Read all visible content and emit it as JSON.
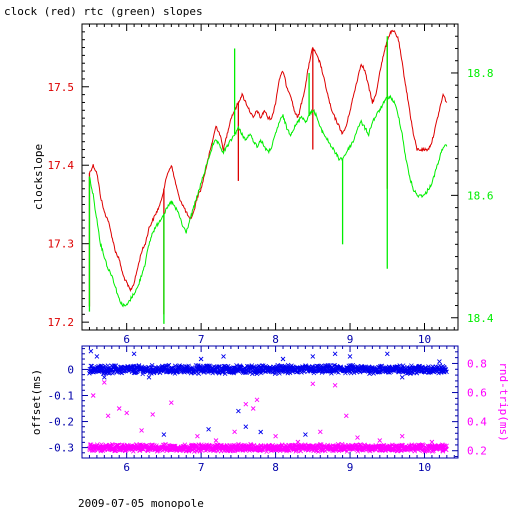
{
  "title": "clock (red) rtc (green) slopes",
  "footer": "2009-07-05 monopole",
  "colors": {
    "clock": "#dd0000",
    "rtc": "#00ee00",
    "offset": "#0000ee",
    "rnd_trip": "#ff00ff",
    "axis": "#000000"
  },
  "chart_data": [
    {
      "type": "line",
      "title": "clock (red) rtc (green) slopes",
      "ylabel": "clockslope",
      "xlim": [
        5.4,
        10.45
      ],
      "ylim_left": [
        17.19,
        17.58
      ],
      "ylim_right": [
        18.38,
        18.88
      ],
      "x_ticks": [
        6,
        7,
        8,
        9,
        10
      ],
      "left_ticks": [
        17.2,
        17.3,
        17.4,
        17.5
      ],
      "right_ticks": [
        18.4,
        18.6,
        18.8
      ],
      "series": [
        {
          "name": "clock",
          "axis": "left",
          "x": [
            5.5,
            5.55,
            5.6,
            5.65,
            5.7,
            5.75,
            5.8,
            5.85,
            5.9,
            5.95,
            6.0,
            6.05,
            6.1,
            6.15,
            6.2,
            6.25,
            6.3,
            6.35,
            6.4,
            6.45,
            6.5,
            6.55,
            6.6,
            6.65,
            6.7,
            6.75,
            6.8,
            6.85,
            6.9,
            6.95,
            7.0,
            7.05,
            7.1,
            7.15,
            7.2,
            7.25,
            7.3,
            7.35,
            7.4,
            7.45,
            7.5,
            7.55,
            7.6,
            7.65,
            7.7,
            7.75,
            7.8,
            7.85,
            7.9,
            7.95,
            8.0,
            8.05,
            8.1,
            8.15,
            8.2,
            8.25,
            8.3,
            8.35,
            8.4,
            8.45,
            8.5,
            8.55,
            8.6,
            8.65,
            8.7,
            8.75,
            8.8,
            8.85,
            8.9,
            8.95,
            9.0,
            9.05,
            9.1,
            9.15,
            9.2,
            9.25,
            9.3,
            9.35,
            9.4,
            9.45,
            9.5,
            9.55,
            9.6,
            9.65,
            9.7,
            9.75,
            9.8,
            9.85,
            9.9,
            9.95,
            10.0,
            10.05,
            10.1,
            10.15,
            10.2,
            10.25,
            10.3
          ],
          "y": [
            17.39,
            17.4,
            17.39,
            17.36,
            17.34,
            17.33,
            17.31,
            17.29,
            17.28,
            17.26,
            17.25,
            17.24,
            17.25,
            17.27,
            17.29,
            17.3,
            17.32,
            17.33,
            17.34,
            17.35,
            17.37,
            17.39,
            17.4,
            17.38,
            17.36,
            17.35,
            17.34,
            17.33,
            17.34,
            17.36,
            17.37,
            17.39,
            17.41,
            17.43,
            17.45,
            17.44,
            17.42,
            17.44,
            17.46,
            17.47,
            17.48,
            17.49,
            17.48,
            17.47,
            17.46,
            17.47,
            17.46,
            17.47,
            17.46,
            17.46,
            17.48,
            17.51,
            17.52,
            17.5,
            17.49,
            17.47,
            17.46,
            17.48,
            17.5,
            17.53,
            17.55,
            17.54,
            17.53,
            17.51,
            17.49,
            17.47,
            17.46,
            17.45,
            17.44,
            17.45,
            17.47,
            17.49,
            17.51,
            17.53,
            17.52,
            17.5,
            17.48,
            17.49,
            17.52,
            17.54,
            17.56,
            17.57,
            17.57,
            17.56,
            17.53,
            17.5,
            17.47,
            17.44,
            17.42,
            17.42,
            17.42,
            17.42,
            17.43,
            17.45,
            17.47,
            17.49,
            17.48
          ],
          "spikes": [
            {
              "x": 5.5,
              "y": 17.22
            },
            {
              "x": 6.5,
              "y": 17.21
            },
            {
              "x": 7.5,
              "y": 17.38
            },
            {
              "x": 8.5,
              "y": 17.42
            },
            {
              "x": 9.5,
              "y": 17.37
            }
          ]
        },
        {
          "name": "rtc",
          "axis": "right",
          "x": [
            5.5,
            5.55,
            5.6,
            5.65,
            5.7,
            5.75,
            5.8,
            5.85,
            5.9,
            5.95,
            6.0,
            6.05,
            6.1,
            6.15,
            6.2,
            6.25,
            6.3,
            6.35,
            6.4,
            6.45,
            6.5,
            6.55,
            6.6,
            6.65,
            6.7,
            6.75,
            6.8,
            6.85,
            6.9,
            6.95,
            7.0,
            7.05,
            7.1,
            7.15,
            7.2,
            7.25,
            7.3,
            7.35,
            7.4,
            7.45,
            7.5,
            7.55,
            7.6,
            7.65,
            7.7,
            7.75,
            7.8,
            7.85,
            7.9,
            7.95,
            8.0,
            8.05,
            8.1,
            8.15,
            8.2,
            8.25,
            8.3,
            8.35,
            8.4,
            8.45,
            8.5,
            8.55,
            8.6,
            8.65,
            8.7,
            8.75,
            8.8,
            8.85,
            8.9,
            8.95,
            9.0,
            9.05,
            9.1,
            9.15,
            9.2,
            9.25,
            9.3,
            9.35,
            9.4,
            9.45,
            9.5,
            9.55,
            9.6,
            9.65,
            9.7,
            9.75,
            9.8,
            9.85,
            9.9,
            9.95,
            10.0,
            10.05,
            10.1,
            10.15,
            10.2,
            10.25,
            10.3
          ],
          "y": [
            18.63,
            18.6,
            18.56,
            18.52,
            18.5,
            18.48,
            18.47,
            18.45,
            18.43,
            18.42,
            18.42,
            18.43,
            18.44,
            18.45,
            18.47,
            18.49,
            18.52,
            18.54,
            18.55,
            18.56,
            18.57,
            18.58,
            18.59,
            18.58,
            18.57,
            18.55,
            18.54,
            18.56,
            18.58,
            18.6,
            18.62,
            18.64,
            18.66,
            18.68,
            18.69,
            18.68,
            18.67,
            18.68,
            18.69,
            18.7,
            18.71,
            18.7,
            18.69,
            18.7,
            18.69,
            18.68,
            18.69,
            18.68,
            18.67,
            18.68,
            18.7,
            18.72,
            18.73,
            18.71,
            18.7,
            18.71,
            18.72,
            18.73,
            18.72,
            18.73,
            18.74,
            18.73,
            18.71,
            18.7,
            18.69,
            18.68,
            18.67,
            18.66,
            18.66,
            18.67,
            18.68,
            18.69,
            18.71,
            18.72,
            18.71,
            18.7,
            18.72,
            18.73,
            18.74,
            18.75,
            18.76,
            18.76,
            18.75,
            18.73,
            18.7,
            18.66,
            18.63,
            18.61,
            18.6,
            18.6,
            18.6,
            18.61,
            18.62,
            18.64,
            18.66,
            18.68,
            18.68
          ],
          "spikes": [
            {
              "x": 5.5,
              "y": 18.41
            },
            {
              "x": 6.5,
              "y": 18.39
            },
            {
              "x": 7.45,
              "y": 18.84
            },
            {
              "x": 8.45,
              "y": 18.8
            },
            {
              "x": 8.9,
              "y": 18.52
            },
            {
              "x": 9.5,
              "y": 18.86
            },
            {
              "x": 9.5,
              "y": 18.48
            }
          ]
        }
      ]
    },
    {
      "type": "scatter",
      "ylabel_left": "offset(ms)",
      "ylabel_right": "rnd-trip(ms)",
      "xlim": [
        5.4,
        10.45
      ],
      "ylim_left": [
        -0.34,
        0.09
      ],
      "ylim_right": [
        0.15,
        0.92
      ],
      "x_ticks": [
        6,
        7,
        8,
        9,
        10
      ],
      "left_ticks": [
        0,
        -0.1,
        -0.2,
        -0.3
      ],
      "right_ticks": [
        0.8,
        0.6,
        0.4,
        0.2
      ],
      "series": [
        {
          "name": "offset",
          "axis": "left",
          "base_value": 0.0,
          "spread": 0.012,
          "x_range": [
            5.5,
            10.3
          ],
          "outliers": [
            {
              "x": 5.52,
              "y": 0.07
            },
            {
              "x": 5.6,
              "y": 0.05
            },
            {
              "x": 5.7,
              "y": -0.03
            },
            {
              "x": 6.1,
              "y": 0.06
            },
            {
              "x": 6.3,
              "y": -0.03
            },
            {
              "x": 6.5,
              "y": -0.25
            },
            {
              "x": 7.0,
              "y": 0.04
            },
            {
              "x": 7.1,
              "y": -0.23
            },
            {
              "x": 7.3,
              "y": 0.05
            },
            {
              "x": 7.5,
              "y": -0.16
            },
            {
              "x": 7.6,
              "y": -0.22
            },
            {
              "x": 7.8,
              "y": -0.24
            },
            {
              "x": 8.1,
              "y": 0.04
            },
            {
              "x": 8.4,
              "y": -0.25
            },
            {
              "x": 8.5,
              "y": 0.05
            },
            {
              "x": 8.8,
              "y": 0.06
            },
            {
              "x": 9.0,
              "y": 0.05
            },
            {
              "x": 9.5,
              "y": 0.06
            },
            {
              "x": 9.7,
              "y": -0.03
            },
            {
              "x": 10.2,
              "y": 0.03
            }
          ]
        },
        {
          "name": "rnd-trip",
          "axis": "right",
          "base_value": 0.22,
          "spread": 0.018,
          "x_range": [
            5.5,
            10.3
          ],
          "outliers": [
            {
              "x": 5.55,
              "y": 0.58
            },
            {
              "x": 5.7,
              "y": 0.67
            },
            {
              "x": 5.75,
              "y": 0.44
            },
            {
              "x": 5.9,
              "y": 0.49
            },
            {
              "x": 6.0,
              "y": 0.46
            },
            {
              "x": 6.2,
              "y": 0.34
            },
            {
              "x": 6.35,
              "y": 0.45
            },
            {
              "x": 6.6,
              "y": 0.53
            },
            {
              "x": 6.95,
              "y": 0.3
            },
            {
              "x": 7.2,
              "y": 0.27
            },
            {
              "x": 7.45,
              "y": 0.33
            },
            {
              "x": 7.6,
              "y": 0.52
            },
            {
              "x": 7.7,
              "y": 0.49
            },
            {
              "x": 7.75,
              "y": 0.55
            },
            {
              "x": 8.0,
              "y": 0.3
            },
            {
              "x": 8.3,
              "y": 0.26
            },
            {
              "x": 8.5,
              "y": 0.66
            },
            {
              "x": 8.6,
              "y": 0.33
            },
            {
              "x": 8.8,
              "y": 0.65
            },
            {
              "x": 8.95,
              "y": 0.44
            },
            {
              "x": 9.1,
              "y": 0.29
            },
            {
              "x": 9.4,
              "y": 0.27
            },
            {
              "x": 9.7,
              "y": 0.3
            },
            {
              "x": 10.1,
              "y": 0.26
            }
          ]
        }
      ]
    }
  ]
}
